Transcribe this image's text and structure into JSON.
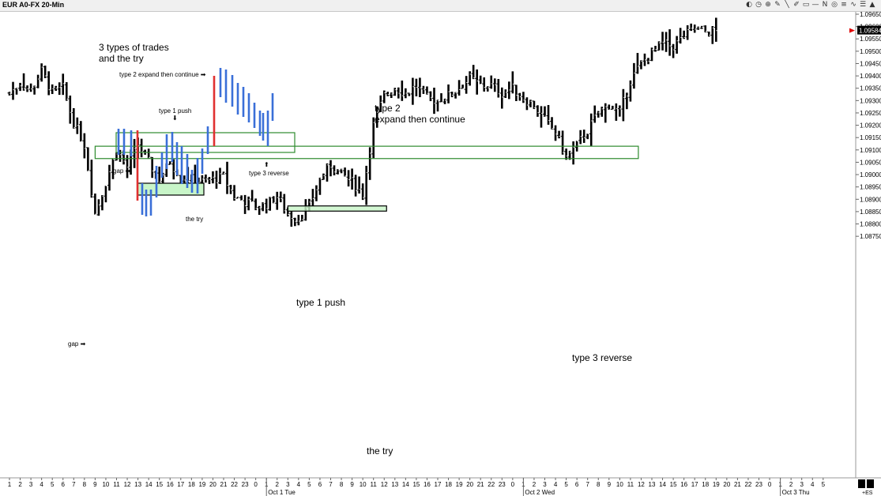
{
  "window": {
    "title": "EUR A0-FX 20-Min"
  },
  "toolbar": [
    {
      "name": "chart-icon",
      "glyph": "◐"
    },
    {
      "name": "clock-icon",
      "glyph": "◷"
    },
    {
      "name": "crosshair-icon",
      "glyph": "⊕"
    },
    {
      "name": "pencil-icon",
      "glyph": "✎"
    },
    {
      "name": "trendline-icon",
      "glyph": "╲"
    },
    {
      "name": "pen-icon",
      "glyph": "✐"
    },
    {
      "name": "rectangle-icon",
      "glyph": "▭"
    },
    {
      "name": "hline-icon",
      "glyph": "—"
    },
    {
      "name": "text-icon",
      "glyph": "N"
    },
    {
      "name": "target-icon",
      "glyph": "◎"
    },
    {
      "name": "bars-icon",
      "glyph": "≡"
    },
    {
      "name": "wave-icon",
      "glyph": "∿"
    },
    {
      "name": "menu-icon",
      "glyph": "☰"
    },
    {
      "name": "up-arrow-icon",
      "glyph": "▲"
    }
  ],
  "chart_data": {
    "type": "ohlc-bar",
    "instrument": "EUR A0-FX 20-Min",
    "y_axis": {
      "ticks": [
        "1.09650",
        "1.09600",
        "1.09550",
        "1.09500",
        "1.09450",
        "1.09400",
        "1.09350",
        "1.09300",
        "1.09250",
        "1.09200",
        "1.09150",
        "1.09100",
        "1.09050",
        "1.09000",
        "1.08950",
        "1.08900",
        "1.08850",
        "1.08800",
        "1.08750"
      ],
      "range": [
        1.0874,
        1.0966
      ]
    },
    "last_price": "1.09584",
    "x_axis": {
      "hour_labels": [
        "1",
        "2",
        "3",
        "4",
        "5",
        "6",
        "7",
        "8",
        "9",
        "10",
        "11",
        "12",
        "13",
        "14",
        "15",
        "16",
        "17",
        "18",
        "19",
        "20",
        "21",
        "22",
        "23",
        "0",
        "1",
        "2",
        "3",
        "4",
        "5",
        "6",
        "7",
        "8",
        "9",
        "10",
        "11",
        "12",
        "13",
        "14",
        "15",
        "16",
        "17",
        "18",
        "19",
        "20",
        "21",
        "22",
        "23",
        "0",
        "1",
        "2",
        "3",
        "4",
        "5",
        "6",
        "7",
        "8",
        "9",
        "10",
        "11",
        "12",
        "13",
        "14",
        "15",
        "16",
        "17",
        "18",
        "19",
        "20",
        "21",
        "22",
        "23",
        "0",
        "1",
        "2",
        "3",
        "4",
        "5"
      ],
      "day_labels": [
        {
          "label": "Oct 1 Tue",
          "hour_index": 24
        },
        {
          "label": "Oct 2 Wed",
          "hour_index": 48
        },
        {
          "label": "Oct 3 Thu",
          "hour_index": 72
        }
      ],
      "corner_label": "+ES"
    },
    "key_points": [
      {
        "hour": 0,
        "price": 1.0933
      },
      {
        "hour": 1,
        "price": 1.0937
      },
      {
        "hour": 2,
        "price": 1.0934
      },
      {
        "hour": 3,
        "price": 1.0942
      },
      {
        "hour": 4,
        "price": 1.0933
      },
      {
        "hour": 5,
        "price": 1.0935
      },
      {
        "hour": 6,
        "price": 1.0921
      },
      {
        "hour": 7,
        "price": 1.0912
      },
      {
        "hour": 8,
        "price": 1.0884
      },
      {
        "hour": 9,
        "price": 1.0897
      },
      {
        "hour": 10,
        "price": 1.091
      },
      {
        "hour": 11,
        "price": 1.0903
      },
      {
        "hour": 12,
        "price": 1.0912
      },
      {
        "hour": 13,
        "price": 1.0905
      },
      {
        "hour": 14,
        "price": 1.0898
      },
      {
        "hour": 15,
        "price": 1.0905
      },
      {
        "hour": 16,
        "price": 1.0899
      },
      {
        "hour": 17,
        "price": 1.0898
      },
      {
        "hour": 18,
        "price": 1.0897
      },
      {
        "hour": 19,
        "price": 1.0898
      },
      {
        "hour": 20,
        "price": 1.0899
      },
      {
        "hour": 21,
        "price": 1.0891
      },
      {
        "hour": 22,
        "price": 1.0889
      },
      {
        "hour": 23,
        "price": 1.0887
      },
      {
        "hour": 24,
        "price": 1.0888
      },
      {
        "hour": 25,
        "price": 1.0891
      },
      {
        "hour": 26,
        "price": 1.0884
      },
      {
        "hour": 27,
        "price": 1.0882
      },
      {
        "hour": 28,
        "price": 1.0887
      },
      {
        "hour": 29,
        "price": 1.0898
      },
      {
        "hour": 30,
        "price": 1.0904
      },
      {
        "hour": 31,
        "price": 1.09
      },
      {
        "hour": 32,
        "price": 1.0897
      },
      {
        "hour": 33,
        "price": 1.0892
      },
      {
        "hour": 34,
        "price": 1.092
      },
      {
        "hour": 35,
        "price": 1.0932
      },
      {
        "hour": 36,
        "price": 1.0935
      },
      {
        "hour": 37,
        "price": 1.0933
      },
      {
        "hour": 38,
        "price": 1.0936
      },
      {
        "hour": 39,
        "price": 1.0931
      },
      {
        "hour": 40,
        "price": 1.093
      },
      {
        "hour": 41,
        "price": 1.0932
      },
      {
        "hour": 42,
        "price": 1.0935
      },
      {
        "hour": 43,
        "price": 1.0939
      },
      {
        "hour": 44,
        "price": 1.0936
      },
      {
        "hour": 45,
        "price": 1.0936
      },
      {
        "hour": 46,
        "price": 1.0933
      },
      {
        "hour": 47,
        "price": 1.0935
      },
      {
        "hour": 48,
        "price": 1.0931
      },
      {
        "hour": 49,
        "price": 1.0928
      },
      {
        "hour": 50,
        "price": 1.0922
      },
      {
        "hour": 51,
        "price": 1.0917
      },
      {
        "hour": 52,
        "price": 1.0907
      },
      {
        "hour": 53,
        "price": 1.0912
      },
      {
        "hour": 54,
        "price": 1.0918
      },
      {
        "hour": 55,
        "price": 1.0925
      },
      {
        "hour": 56,
        "price": 1.0928
      },
      {
        "hour": 57,
        "price": 1.0925
      },
      {
        "hour": 58,
        "price": 1.0938
      },
      {
        "hour": 59,
        "price": 1.0945
      },
      {
        "hour": 60,
        "price": 1.0949
      },
      {
        "hour": 61,
        "price": 1.0953
      },
      {
        "hour": 62,
        "price": 1.0952
      },
      {
        "hour": 63,
        "price": 1.0956
      },
      {
        "hour": 64,
        "price": 1.0959
      },
      {
        "hour": 65,
        "price": 1.0958
      },
      {
        "hour": 66,
        "price": 1.0958
      }
    ],
    "zones": [
      {
        "label": "type 1 push",
        "hour_from": 8,
        "hour_to": 58,
        "price_high": 1.09115,
        "price_low": 1.09065
      },
      {
        "label": "the try",
        "hour_from": 26,
        "hour_to": 35,
        "price_high": 1.08873,
        "price_low": 1.08852
      }
    ],
    "inset": {
      "title_line1": "3 types of trades",
      "title_line2": "and the try",
      "labels": {
        "type2": "type 2 expand then continue",
        "type1": "type 1 push",
        "gap": "gap",
        "try": "the try",
        "type3": "type 3 reverse"
      }
    },
    "annotations": {
      "type2_line1": "type 2",
      "type2_line2": "expand then continue",
      "type1": "type 1 push",
      "type3": "type 3 reverse",
      "the_try": "the try",
      "gap": "gap"
    }
  }
}
